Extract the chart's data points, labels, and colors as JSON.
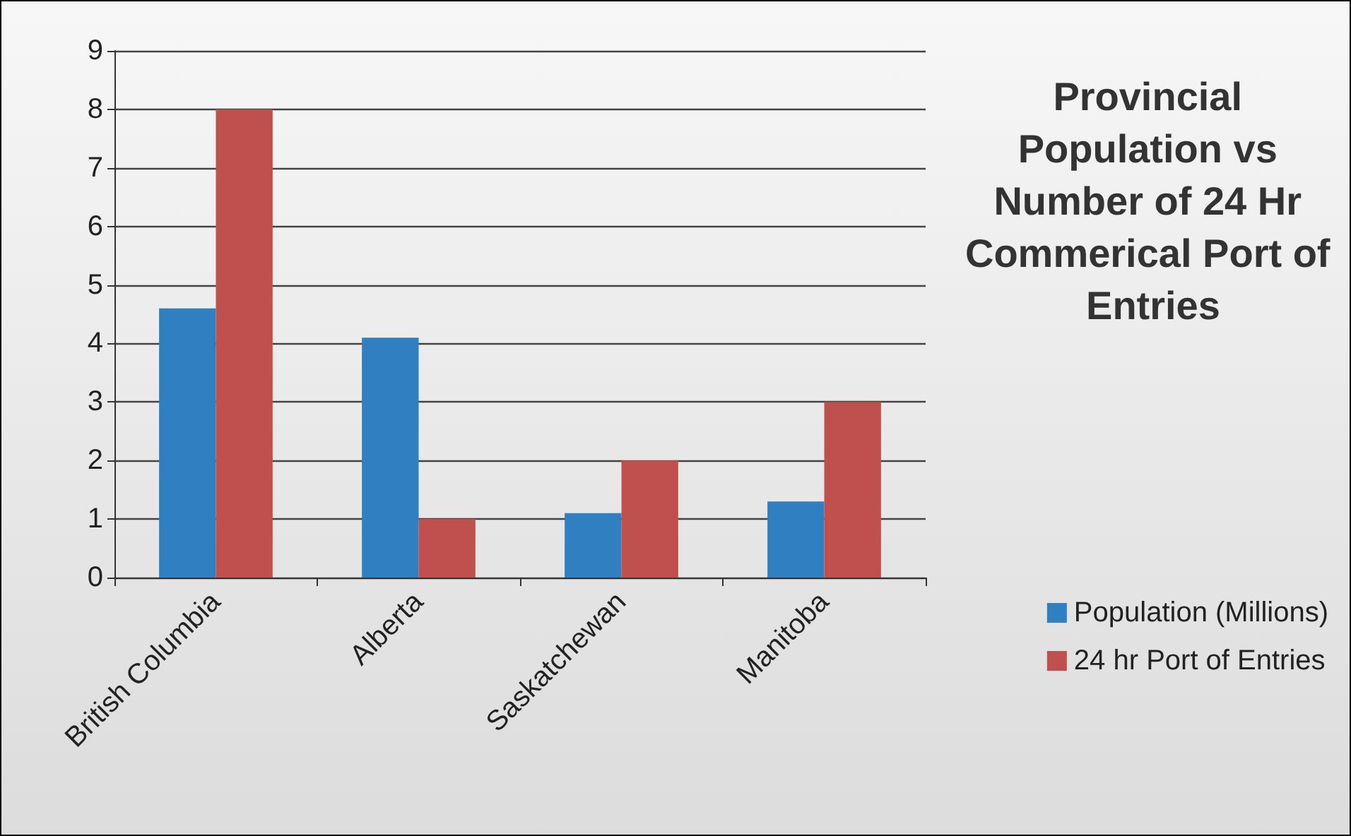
{
  "chart_data": {
    "type": "bar",
    "title": "Provincial Population vs Number of 24 Hr Commerical Port of Entries",
    "categories": [
      "British Columbia",
      "Alberta",
      "Saskatchewan",
      "Manitoba"
    ],
    "series": [
      {
        "name": "Population (Millions)",
        "color": "#2f7fc1",
        "values": [
          4.6,
          4.1,
          1.1,
          1.3
        ]
      },
      {
        "name": "24 hr Port of Entries",
        "color": "#c0504d",
        "values": [
          8,
          1,
          2,
          3
        ]
      }
    ],
    "ylim": [
      0,
      9
    ],
    "yticks": [
      0,
      1,
      2,
      3,
      4,
      5,
      6,
      7,
      8,
      9
    ],
    "grid": "y",
    "legend": "right"
  }
}
